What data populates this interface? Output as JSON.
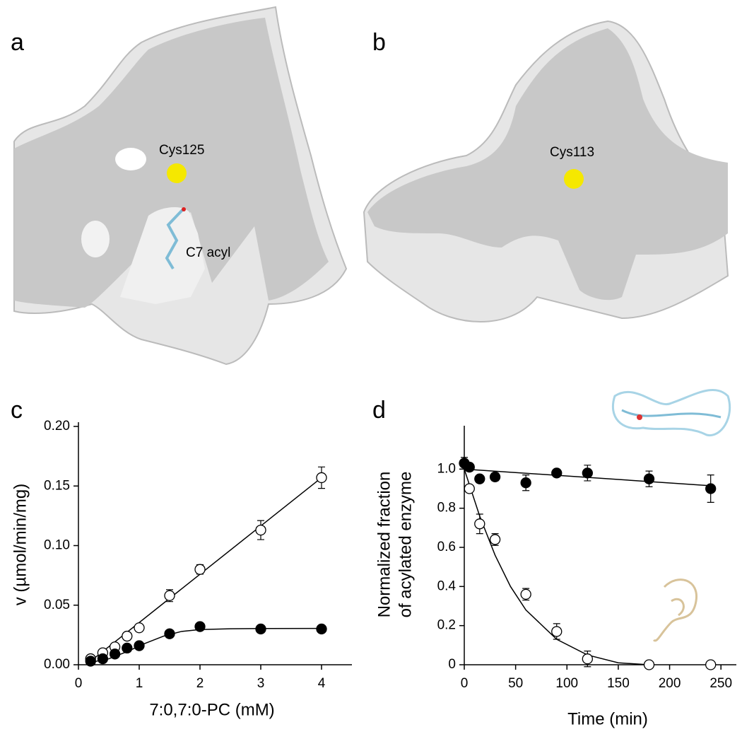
{
  "panel_labels": [
    "a",
    "b",
    "c",
    "d"
  ],
  "annotations": [
    "Cys125",
    "C7 acyl",
    "Cys113"
  ],
  "chart_data": [
    {
      "type": "scatter",
      "xlabel": "7:0,7:0-PC (mM)",
      "ylabel": [
        "v (µmol/min/mg)"
      ],
      "xlim": [
        0,
        4.5
      ],
      "xticks": [
        0,
        1,
        2,
        3,
        4
      ],
      "ylim": [
        0,
        0.2
      ],
      "yticks": [
        {
          "value": 0,
          "label": "0.00"
        },
        {
          "value": 0.05,
          "label": "0.05"
        },
        {
          "value": 0.1,
          "label": "0.10"
        },
        {
          "value": 0.15,
          "label": "0.15"
        },
        {
          "value": 0.2,
          "label": "0.20"
        }
      ],
      "series": [
        {
          "marker_fill": "#ffffff",
          "color": "#000000",
          "x": [
            0.2,
            0.4,
            0.6,
            0.8,
            1,
            1.5,
            2,
            3,
            4
          ],
          "values": [
            0.005,
            0.01,
            0.015,
            0.024,
            0.031,
            0.058,
            0.08,
            0.113,
            0.157
          ],
          "errors": [
            0,
            0,
            0,
            0,
            0,
            0.005,
            0.004,
            0.008,
            0.009
          ]
        },
        {
          "marker_fill": "#000000",
          "color": "#000000",
          "x": [
            0.2,
            0.4,
            0.6,
            0.8,
            1,
            1.5,
            2,
            3,
            4
          ],
          "values": [
            0.003,
            0.005,
            0.009,
            0.014,
            0.016,
            0.026,
            0.032,
            0.03,
            0.03
          ],
          "errors": [
            0,
            0,
            0,
            0,
            0,
            0,
            0,
            0,
            0
          ]
        }
      ],
      "fits": [
        {
          "color": "#000000",
          "x": [
            0.2,
            4
          ],
          "values": [
            0.003,
            0.157
          ]
        },
        {
          "color": "#000000",
          "x": [
            0.2,
            0.5,
            0.8,
            1.1,
            1.4,
            1.7,
            2,
            2.5,
            3,
            4
          ],
          "values": [
            0.002,
            0.005,
            0.011,
            0.018,
            0.024,
            0.028,
            0.0295,
            0.0302,
            0.0304,
            0.0305
          ]
        }
      ]
    },
    {
      "type": "scatter",
      "xlabel": "Time (min)",
      "ylabel": [
        "Normalized fraction",
        "of acylated enzyme"
      ],
      "xlim": [
        0,
        265
      ],
      "xticks": [
        0,
        50,
        100,
        150,
        200,
        250
      ],
      "ylim": [
        0,
        1.2
      ],
      "yticks": [
        0,
        0.2,
        0.4,
        0.6,
        0.8,
        {
          "value": 1,
          "label": "1.0"
        }
      ],
      "series": [
        {
          "marker_fill": "#000000",
          "color": "#000000",
          "x": [
            0,
            5,
            15,
            30,
            60,
            90,
            120,
            180,
            240
          ],
          "values": [
            1.03,
            1.01,
            0.95,
            0.96,
            0.93,
            0.98,
            0.98,
            0.95,
            0.9
          ],
          "errors": [
            0.03,
            0.02,
            0.01,
            0.02,
            0.04,
            0.01,
            0.04,
            0.04,
            0.07
          ]
        },
        {
          "marker_fill": "#ffffff",
          "color": "#000000",
          "x": [
            5,
            15,
            30,
            60,
            90,
            120,
            180,
            240
          ],
          "values": [
            0.9,
            0.72,
            0.64,
            0.36,
            0.17,
            0.03,
            0,
            0
          ],
          "errors": [
            0,
            0.05,
            0.03,
            0.03,
            0.04,
            0.04,
            0,
            0
          ]
        }
      ],
      "fits": [
        {
          "color": "#000000",
          "x": [
            0,
            240
          ],
          "values": [
            1,
            0.915
          ]
        },
        {
          "color": "#000000",
          "x": [
            0,
            15,
            30,
            45,
            60,
            90,
            120,
            150,
            180
          ],
          "values": [
            1,
            0.76,
            0.56,
            0.4,
            0.28,
            0.13,
            0.05,
            0.01,
            0
          ]
        }
      ]
    }
  ]
}
